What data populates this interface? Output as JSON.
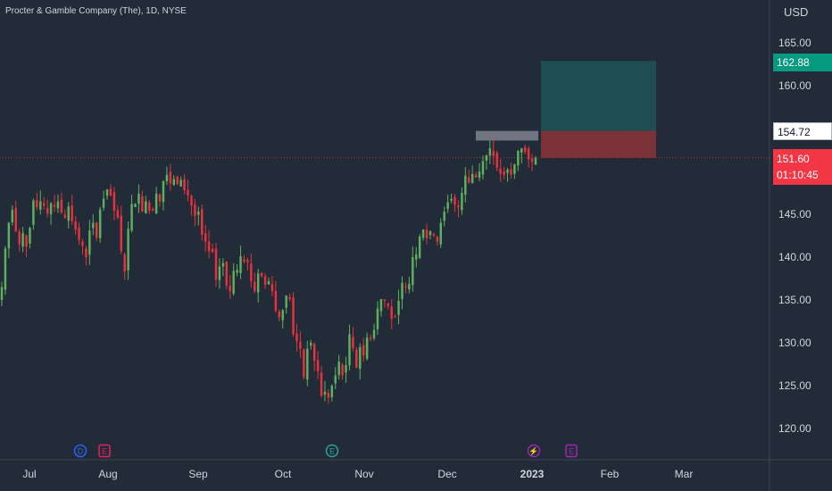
{
  "header": {
    "title": "Procter & Gamble Company (The), 1D, NYSE"
  },
  "price_axis": {
    "currency": "USD"
  },
  "chart_data": {
    "type": "candlestick",
    "title": "Procter & Gamble Company (The), 1D, NYSE",
    "currency": "USD",
    "ylim": [
      116.5,
      168
    ],
    "y_ticks": [
      120,
      125,
      130,
      135,
      140,
      145,
      150,
      155,
      160,
      165
    ],
    "y_tick_labels": [
      "120.00",
      "125.00",
      "130.00",
      "135.00",
      "140.00",
      "145.00",
      "150.00",
      "155.00",
      "160.00",
      "165.00"
    ],
    "x_labels": [
      "Jul",
      "Aug",
      "Sep",
      "Oct",
      "Nov",
      "Dec",
      "2023",
      "Feb",
      "Mar"
    ],
    "grid": false,
    "price_labels": {
      "target": "162.88",
      "entry": "154.72",
      "last": "151.60",
      "countdown": "01:10:45"
    },
    "colors": {
      "up": "#5fb15f",
      "down": "#e8323c",
      "background": "#222b38",
      "target": "#089981",
      "last": "#f23645"
    },
    "position_box": {
      "target": 162.88,
      "entry": 154.72,
      "stop": 151.6
    },
    "resistance_zone": [
      154.72,
      153.6
    ],
    "event_markers": [
      {
        "type": "dividend",
        "label": "D"
      },
      {
        "type": "earnings",
        "label": "E"
      },
      {
        "type": "earnings",
        "label": "E"
      },
      {
        "type": "split",
        "label": "⚡"
      },
      {
        "type": "earnings",
        "label": "E"
      }
    ],
    "series_close": [
      136.5,
      141.0,
      144.0,
      145.5,
      143.0,
      141.5,
      142.8,
      141.2,
      143.4,
      146.6,
      145.8,
      146.5,
      146.0,
      145.1,
      146.3,
      145.9,
      146.5,
      145.2,
      144.6,
      145.9,
      144.2,
      143.2,
      142.0,
      141.3,
      140.0,
      143.1,
      144.0,
      142.3,
      145.6,
      146.8,
      147.9,
      147.2,
      145.4,
      144.6,
      140.7,
      138.3,
      143.3,
      146.2,
      146.2,
      147.4,
      145.3,
      146.5,
      145.4,
      145.5,
      147.4,
      146.5,
      148.9,
      149.6,
      148.6,
      149.1,
      148.5,
      149.0,
      147.8,
      147.2,
      146.0,
      144.8,
      145.3,
      142.6,
      141.8,
      140.7,
      140.6,
      137.4,
      138.9,
      139.3,
      136.7,
      136.0,
      138.4,
      138.5,
      140.1,
      139.5,
      139.4,
      137.2,
      136.0,
      138.1,
      137.8,
      136.8,
      137.2,
      136.0,
      133.7,
      133.0,
      133.8,
      135.5,
      135.1,
      131.0,
      130.2,
      129.3,
      126.0,
      129.3,
      130.0,
      127.9,
      126.7,
      123.8,
      124.3,
      123.6,
      125.0,
      126.2,
      127.8,
      126.2,
      127.4,
      131.0,
      129.4,
      127.1,
      129.5,
      128.5,
      130.6,
      130.5,
      131.5,
      134.0,
      135.1,
      134.9,
      134.3,
      132.8,
      133.0,
      134.9,
      137.0,
      136.6,
      136.9,
      140.0,
      140.3,
      142.4,
      143.2,
      142.2,
      143.0,
      142.5,
      141.8,
      144.0,
      145.3,
      146.4,
      146.8,
      146.1,
      145.8,
      147.5,
      149.5,
      148.7,
      149.7,
      149.3,
      150.0,
      151.2,
      151.9,
      152.7,
      151.8,
      150.4,
      149.7,
      149.6,
      150.2,
      149.6,
      150.8,
      152.4,
      152.7,
      152.3,
      151.4,
      151.1,
      151.6
    ]
  }
}
